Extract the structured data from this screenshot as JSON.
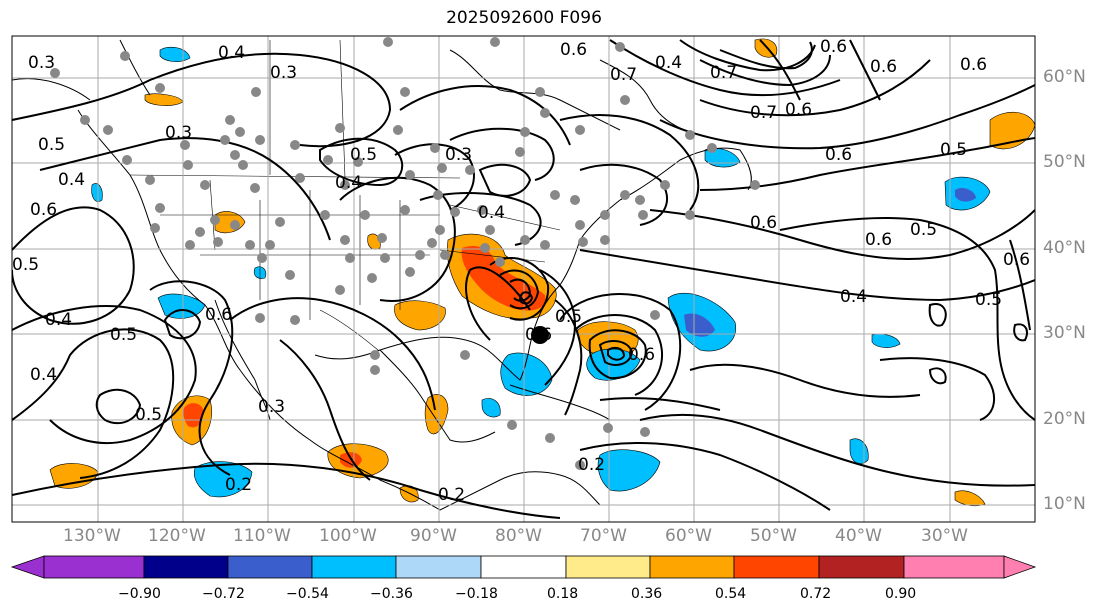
{
  "title": "2025092600 F096",
  "lon_labels": [
    "130°W",
    "120°W",
    "110°W",
    "100°W",
    "90°W",
    "80°W",
    "70°W",
    "60°W",
    "50°W",
    "40°W",
    "30°W"
  ],
  "lat_labels": [
    "60°N",
    "50°N",
    "40°N",
    "30°N",
    "20°N",
    "10°N"
  ],
  "colorbar": {
    "ticks": [
      "−0.90",
      "−0.72",
      "−0.54",
      "−0.36",
      "−0.18",
      "0.18",
      "0.36",
      "0.54",
      "0.72",
      "0.90"
    ],
    "colors": [
      "#9b30d0",
      "#00008b",
      "#3a5fcd",
      "#00bfff",
      "#add8f7",
      "#ffffff",
      "#ffeb8a",
      "#ffa500",
      "#ff4500",
      "#b22222",
      "#ff7fb0"
    ]
  },
  "contour_labels": [
    "0.3",
    "0.4",
    "0.5",
    "0.6",
    "0.7",
    "0.2"
  ],
  "storm_marker": "black-dot"
}
